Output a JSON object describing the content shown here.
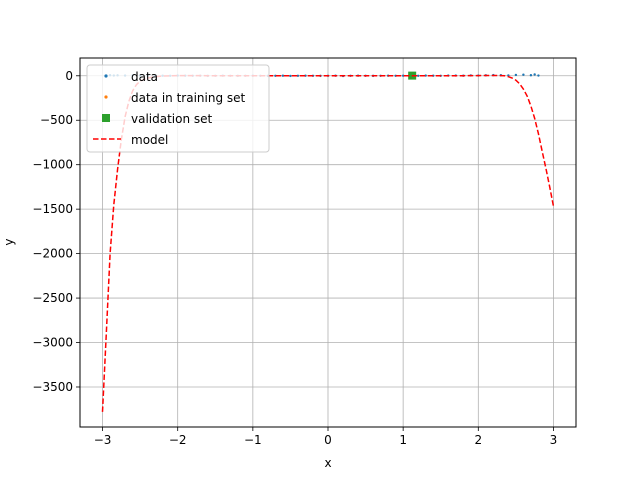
{
  "chart_data": {
    "type": "line",
    "title": "",
    "xlabel": "x",
    "ylabel": "y",
    "xlim": [
      -3.3,
      3.3
    ],
    "ylim": [
      -3950,
      200
    ],
    "xticks": [
      -3,
      -2,
      -1,
      0,
      1,
      2,
      3
    ],
    "xtick_labels": [
      "−3",
      "−2",
      "−1",
      "0",
      "1",
      "2",
      "3"
    ],
    "yticks": [
      0,
      -500,
      -1000,
      -1500,
      -2000,
      -2500,
      -3000,
      -3500
    ],
    "ytick_labels": [
      "0",
      "−500",
      "−1000",
      "−1500",
      "−2000",
      "−2500",
      "−3000",
      "−3500"
    ],
    "grid": true,
    "legend_position": "upper-left",
    "series": [
      {
        "name": "data",
        "style": "scatter",
        "color": "#1f77b4",
        "x": [
          -2.95,
          -2.9,
          -2.85,
          -2.8,
          -2.7,
          -2.6,
          -2.5,
          -2.4,
          -2.3,
          -2.2,
          -2.1,
          -2.0,
          -1.9,
          -1.8,
          -1.7,
          -1.6,
          -1.5,
          -1.4,
          -1.3,
          -1.2,
          -1.1,
          -1.0,
          -0.9,
          -0.8,
          -0.7,
          -0.6,
          -0.5,
          -0.4,
          -0.3,
          -0.2,
          -0.1,
          0.0,
          0.1,
          0.2,
          0.3,
          0.4,
          0.5,
          0.6,
          0.7,
          0.8,
          0.9,
          1.0,
          1.2,
          1.3,
          1.4,
          1.5,
          1.6,
          1.7,
          1.8,
          1.9,
          2.0,
          2.1,
          2.2,
          2.3,
          2.4,
          2.5,
          2.6,
          2.7,
          2.75,
          2.8
        ],
        "y": [
          4,
          6,
          3,
          5,
          2,
          4,
          1,
          3,
          2,
          1,
          0,
          2,
          1,
          0,
          1,
          -1,
          0,
          1,
          0,
          -1,
          0,
          1,
          0,
          -1,
          0,
          1,
          -2,
          0,
          1,
          0,
          -1,
          0,
          1,
          -3,
          0,
          1,
          0,
          -1,
          0,
          1,
          0,
          1,
          0,
          2,
          1,
          0,
          2,
          3,
          1,
          4,
          3,
          5,
          8,
          6,
          4,
          9,
          12,
          6,
          15,
          3
        ]
      },
      {
        "name": "data in training set",
        "style": "scatter",
        "color": "#ff7f0e",
        "x": [],
        "y": []
      },
      {
        "name": "validation set",
        "style": "marker-square",
        "color": "#2ca02c",
        "x": [
          1.12
        ],
        "y": [
          2
        ]
      },
      {
        "name": "model",
        "style": "dashed-line",
        "color": "#ff0000",
        "x": [
          -3.0,
          -2.95,
          -2.9,
          -2.85,
          -2.8,
          -2.75,
          -2.7,
          -2.65,
          -2.6,
          -2.55,
          -2.5,
          -2.4,
          -2.3,
          -2.2,
          -2.1,
          -2.0,
          -1.8,
          -1.6,
          -1.4,
          -1.2,
          -1.0,
          -0.5,
          0.0,
          0.5,
          1.0,
          1.5,
          1.8,
          2.0,
          2.1,
          2.2,
          2.3,
          2.35,
          2.4,
          2.45,
          2.5,
          2.55,
          2.6,
          2.65,
          2.7,
          2.75,
          2.8,
          2.85,
          2.9,
          2.95,
          3.0
        ],
        "y": [
          -3780,
          -2900,
          -2000,
          -1450,
          -1050,
          -720,
          -460,
          -290,
          -170,
          -100,
          -60,
          -25,
          -10,
          -3,
          0,
          2,
          2,
          1,
          0,
          0,
          0,
          0,
          0,
          0,
          0,
          0,
          1,
          2,
          3,
          3,
          2,
          0,
          -10,
          -25,
          -50,
          -90,
          -150,
          -230,
          -340,
          -480,
          -650,
          -850,
          -1040,
          -1250,
          -1470
        ]
      }
    ]
  }
}
